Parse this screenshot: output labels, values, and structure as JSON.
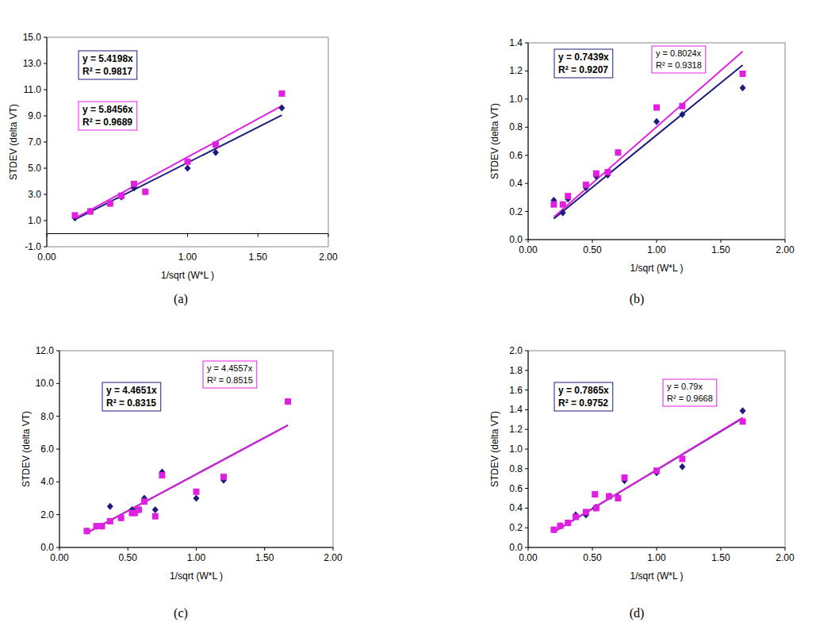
{
  "chart_data": [
    {
      "type": "scatter",
      "title": "(a)",
      "x_label": "1/sqrt (W*L )",
      "y_label": "STDEV (delta VT)",
      "grid": false,
      "xlim": [
        0,
        2
      ],
      "ylim": [
        -1,
        15
      ],
      "xticks": [
        {
          "value": 0,
          "label": "0.00"
        },
        {
          "value": 1,
          "label": "1.00"
        },
        {
          "value": 1.5,
          "label": "1.50"
        },
        {
          "value": 2,
          "label": "2.00"
        }
      ],
      "yticks": [
        {
          "value": -1,
          "label": "-1.0"
        },
        {
          "value": 1,
          "label": "1.0"
        },
        {
          "value": 3,
          "label": "3.0"
        },
        {
          "value": 5,
          "label": "5.0"
        },
        {
          "value": 7,
          "label": "7.0"
        },
        {
          "value": 9,
          "label": "9.0"
        },
        {
          "value": 11,
          "label": "11.0"
        },
        {
          "value": 13,
          "label": "13.0"
        },
        {
          "value": 15,
          "label": "15.0"
        }
      ],
      "x": [
        0.2,
        0.31,
        0.45,
        0.53,
        0.62,
        0.7,
        1.0,
        1.2,
        1.67
      ],
      "series": [
        {
          "color": "#1c1c7c",
          "marker": "diamond",
          "values": [
            1.2,
            1.7,
            2.3,
            2.8,
            3.5,
            3.2,
            5.0,
            6.2,
            9.6
          ],
          "trendline": {
            "slope": 5.4198,
            "equation": "y = 5.4198x",
            "r2_text": "R² = 0.9817"
          }
        },
        {
          "color": "#e020e0",
          "marker": "square",
          "values": [
            1.4,
            1.7,
            2.3,
            2.9,
            3.8,
            3.2,
            5.5,
            6.8,
            10.7
          ],
          "trendline": {
            "slope": 5.8456,
            "equation": "y = 5.8456x",
            "r2_text": "R² = 0.9689"
          }
        }
      ]
    },
    {
      "type": "scatter",
      "title": "(b)",
      "x_label": "1/sqrt (W*L )",
      "y_label": "STDEV (delta VT)",
      "grid": false,
      "xlim": [
        0,
        2
      ],
      "ylim": [
        0,
        1.4
      ],
      "xticks": [
        {
          "value": 0,
          "label": "0.00"
        },
        {
          "value": 0.5,
          "label": "0.50"
        },
        {
          "value": 1,
          "label": "1.00"
        },
        {
          "value": 1.5,
          "label": "1.50"
        },
        {
          "value": 2,
          "label": "2.00"
        }
      ],
      "yticks": [
        {
          "value": 0,
          "label": "0.0"
        },
        0.2,
        0.4,
        0.6,
        0.8,
        {
          "value": 1,
          "label": "1.0"
        },
        1.2,
        1.4
      ],
      "x": [
        0.2,
        0.27,
        0.31,
        0.45,
        0.53,
        0.62,
        0.7,
        1.0,
        1.2,
        1.67
      ],
      "series": [
        {
          "color": "#1c1c7c",
          "marker": "diamond",
          "values": [
            0.28,
            0.19,
            0.29,
            0.37,
            0.45,
            0.46,
            0.62,
            0.84,
            0.89,
            1.08
          ],
          "trendline": {
            "slope": 0.7439,
            "equation": "y = 0.7439x",
            "r2_text": "R² = 0.9207"
          }
        },
        {
          "color": "#e020e0",
          "marker": "square",
          "values": [
            0.25,
            0.25,
            0.31,
            0.39,
            0.47,
            0.48,
            0.62,
            0.94,
            0.95,
            1.18
          ],
          "trendline": {
            "slope": 0.8024,
            "equation": "y = 0.8024x",
            "r2_text": "R² = 0.9318"
          }
        }
      ]
    },
    {
      "type": "scatter",
      "title": "(c)",
      "x_label": "1/sqrt (W*L )",
      "y_label": "STDEV (delta VT)",
      "grid": false,
      "xlim": [
        0,
        2
      ],
      "ylim": [
        0,
        12
      ],
      "xticks": [
        {
          "value": 0,
          "label": "0.00"
        },
        {
          "value": 0.5,
          "label": "0.50"
        },
        {
          "value": 1,
          "label": "1.00"
        },
        {
          "value": 1.5,
          "label": "1.50"
        },
        {
          "value": 2,
          "label": "2.00"
        }
      ],
      "yticks": [
        {
          "value": 0,
          "label": "0.0"
        },
        {
          "value": 2,
          "label": "2.0"
        },
        {
          "value": 4,
          "label": "4.0"
        },
        {
          "value": 6,
          "label": "6.0"
        },
        {
          "value": 8,
          "label": "8.0"
        },
        {
          "value": 10,
          "label": "10.0"
        },
        {
          "value": 12,
          "label": "12.0"
        }
      ],
      "x": [
        0.2,
        0.27,
        0.31,
        0.37,
        0.45,
        0.53,
        0.55,
        0.58,
        0.62,
        0.7,
        0.75,
        1.0,
        1.2,
        1.67
      ],
      "series": [
        {
          "color": "#1c1c7c",
          "marker": "diamond",
          "values": [
            1.0,
            1.3,
            1.3,
            2.5,
            1.8,
            2.3,
            2.2,
            2.3,
            3.0,
            2.3,
            4.6,
            3.0,
            4.1,
            8.9
          ],
          "trendline": {
            "slope": 4.4651,
            "equation": "y = 4.4651x",
            "r2_text": "R² = 0.8315"
          }
        },
        {
          "color": "#e020e0",
          "marker": "square",
          "values": [
            1.0,
            1.3,
            1.3,
            1.6,
            1.8,
            2.1,
            2.1,
            2.3,
            2.8,
            1.9,
            4.4,
            3.4,
            4.3,
            8.9
          ],
          "trendline": {
            "slope": 4.4557,
            "equation": "y = 4.4557x",
            "r2_text": "R² = 0.8515"
          }
        }
      ]
    },
    {
      "type": "scatter",
      "title": "(d)",
      "x_label": "1/sqrt (W*L )",
      "y_label": "STDEV (delta VT)",
      "grid": false,
      "xlim": [
        0,
        2
      ],
      "ylim": [
        0,
        2
      ],
      "xticks": [
        {
          "value": 0,
          "label": "0.00"
        },
        {
          "value": 0.5,
          "label": "0.50"
        },
        {
          "value": 1,
          "label": "1.00"
        },
        {
          "value": 1.5,
          "label": "1.50"
        },
        {
          "value": 2,
          "label": "2.00"
        }
      ],
      "yticks": [
        {
          "value": 0,
          "label": "0.0"
        },
        0.2,
        0.4,
        0.6,
        0.8,
        {
          "value": 1,
          "label": "1.0"
        },
        1.2,
        1.4,
        1.6,
        1.8,
        {
          "value": 2,
          "label": "2.0"
        }
      ],
      "x": [
        0.2,
        0.25,
        0.31,
        0.37,
        0.45,
        0.52,
        0.53,
        0.63,
        0.7,
        0.75,
        1.0,
        1.2,
        1.67
      ],
      "series": [
        {
          "color": "#1c1c7c",
          "marker": "diamond",
          "values": [
            0.18,
            0.22,
            0.25,
            0.33,
            0.33,
            0.4,
            0.41,
            0.52,
            0.51,
            0.68,
            0.76,
            0.82,
            1.39
          ],
          "trendline": {
            "slope": 0.7865,
            "equation": "y = 0.7865x",
            "r2_text": "R² = 0.9752"
          }
        },
        {
          "color": "#e020e0",
          "marker": "square",
          "values": [
            0.18,
            0.22,
            0.25,
            0.31,
            0.36,
            0.54,
            0.4,
            0.52,
            0.5,
            0.71,
            0.78,
            0.9,
            1.28
          ],
          "trendline": {
            "slope": 0.79,
            "equation": "y = 0.79x",
            "r2_text": "R² = 0.9668"
          }
        }
      ]
    }
  ]
}
